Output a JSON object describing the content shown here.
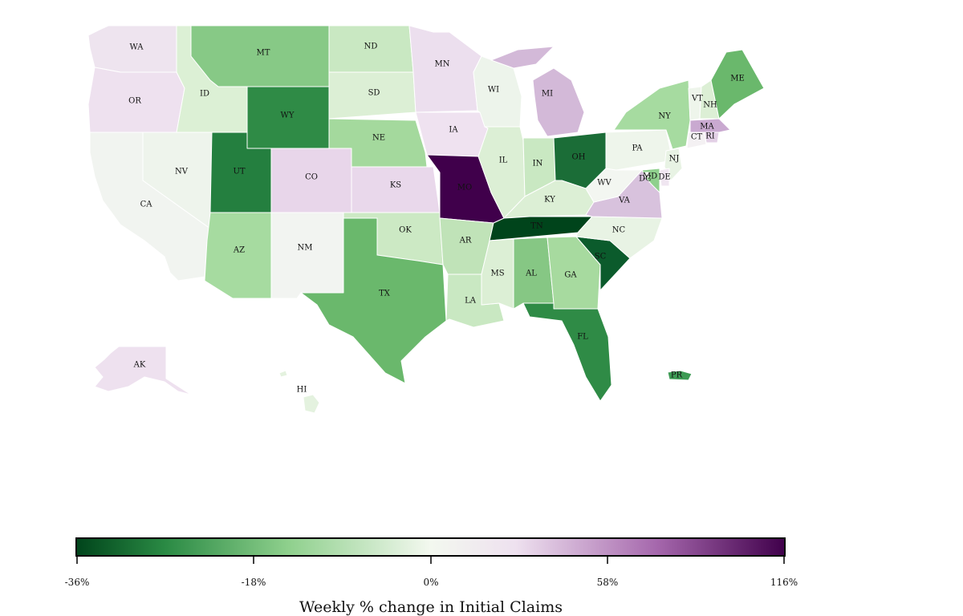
{
  "legend": {
    "title": "Weekly % change in Initial Claims",
    "tick_labels": [
      "-36%",
      "-18%",
      "0%",
      "58%",
      "116%"
    ],
    "colors": [
      "#00441b",
      "#2a8a44",
      "#8fd08d",
      "#f3f8ef",
      "#eee1ef",
      "#a567ac",
      "#40004b"
    ]
  },
  "map": {
    "states": [
      {
        "abbr": "WA",
        "color": "#eee4ef"
      },
      {
        "abbr": "OR",
        "color": "#eee1ef"
      },
      {
        "abbr": "CA",
        "color": "#f1f4f0"
      },
      {
        "abbr": "NV",
        "color": "#eef4ec"
      },
      {
        "abbr": "ID",
        "color": "#dcf0d5"
      },
      {
        "abbr": "MT",
        "color": "#87c986"
      },
      {
        "abbr": "WY",
        "color": "#2f8b46"
      },
      {
        "abbr": "UT",
        "color": "#247f3f"
      },
      {
        "abbr": "AZ",
        "color": "#a6dba0"
      },
      {
        "abbr": "NM",
        "color": "#f2f4f1"
      },
      {
        "abbr": "CO",
        "color": "#e8d6ea"
      },
      {
        "abbr": "ND",
        "color": "#c9e8c2"
      },
      {
        "abbr": "SD",
        "color": "#dcefd5"
      },
      {
        "abbr": "NE",
        "color": "#a4d99d"
      },
      {
        "abbr": "KS",
        "color": "#e9d8eb"
      },
      {
        "abbr": "OK",
        "color": "#cce9c4"
      },
      {
        "abbr": "TX",
        "color": "#6ab86c"
      },
      {
        "abbr": "MN",
        "color": "#ecdfee"
      },
      {
        "abbr": "IA",
        "color": "#efe2f0"
      },
      {
        "abbr": "MO",
        "color": "#40004b"
      },
      {
        "abbr": "AR",
        "color": "#c0e3b8"
      },
      {
        "abbr": "LA",
        "color": "#c9e8c2"
      },
      {
        "abbr": "WI",
        "color": "#edf4eb"
      },
      {
        "abbr": "IL",
        "color": "#dcefd5"
      },
      {
        "abbr": "MI",
        "color": "#d3b9d8"
      },
      {
        "abbr": "IN",
        "color": "#c9e8c2"
      },
      {
        "abbr": "OH",
        "color": "#1b6d37"
      },
      {
        "abbr": "KY",
        "color": "#dcefd5"
      },
      {
        "abbr": "TN",
        "color": "#00441b"
      },
      {
        "abbr": "MS",
        "color": "#dcefd5"
      },
      {
        "abbr": "AL",
        "color": "#86c784"
      },
      {
        "abbr": "GA",
        "color": "#a7da9f"
      },
      {
        "abbr": "FL",
        "color": "#2f8b46"
      },
      {
        "abbr": "SC",
        "color": "#0b5b2c"
      },
      {
        "abbr": "NC",
        "color": "#e8f3e4"
      },
      {
        "abbr": "VA",
        "color": "#d8c2dd"
      },
      {
        "abbr": "WV",
        "color": "#f3f6f1"
      },
      {
        "abbr": "PA",
        "color": "#eef5eb"
      },
      {
        "abbr": "NY",
        "color": "#a6dba0"
      },
      {
        "abbr": "VT",
        "color": "#eef5eb"
      },
      {
        "abbr": "NH",
        "color": "#dcefd5"
      },
      {
        "abbr": "ME",
        "color": "#6ab86c"
      },
      {
        "abbr": "MA",
        "color": "#c9a9d0"
      },
      {
        "abbr": "RI",
        "color": "#e3d0e6"
      },
      {
        "abbr": "CT",
        "color": "#f4f1f3"
      },
      {
        "abbr": "NJ",
        "color": "#e8f3e4"
      },
      {
        "abbr": "DE",
        "color": "#f0e6f1"
      },
      {
        "abbr": "MD",
        "color": "#8fd08d"
      },
      {
        "abbr": "DC",
        "color": "#f2f4f1"
      },
      {
        "abbr": "AK",
        "color": "#eee1ef"
      },
      {
        "abbr": "HI",
        "color": "#e4f2df"
      },
      {
        "abbr": "PR",
        "color": "#3d9b54"
      }
    ]
  }
}
